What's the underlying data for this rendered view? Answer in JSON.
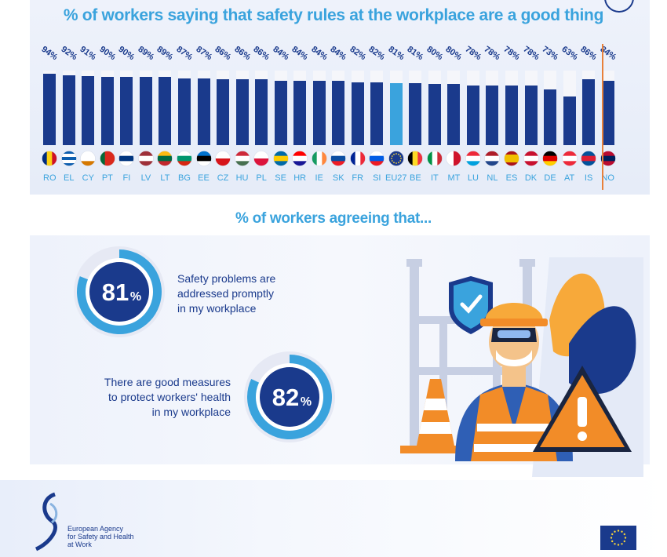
{
  "page": {
    "title": "% of workers saying that safety rules at the workplace are a good thing",
    "subtitle": "% of workers agreeing that..."
  },
  "chart_data": {
    "type": "bar",
    "title": "% of workers saying that safety rules at the workplace are a good thing",
    "categories": [
      "RO",
      "EL",
      "CY",
      "PT",
      "FI",
      "LV",
      "LT",
      "BG",
      "EE",
      "CZ",
      "HU",
      "PL",
      "SE",
      "HR",
      "IE",
      "SK",
      "FR",
      "SI",
      "EU27",
      "BE",
      "IT",
      "MT",
      "LU",
      "NL",
      "ES",
      "DK",
      "DE",
      "AT",
      "IS",
      "NO"
    ],
    "labels": [
      "94%",
      "92%",
      "91%",
      "90%",
      "90%",
      "89%",
      "89%",
      "87%",
      "87%",
      "86%",
      "86%",
      "86%",
      "84%",
      "84%",
      "84%",
      "84%",
      "82%",
      "82%",
      "81%",
      "81%",
      "80%",
      "80%",
      "78%",
      "78%",
      "78%",
      "78%",
      "73%",
      "63%",
      "86%",
      "84%"
    ],
    "values": [
      94,
      92,
      91,
      90,
      90,
      89,
      89,
      87,
      87,
      86,
      86,
      86,
      84,
      84,
      84,
      84,
      82,
      82,
      81,
      81,
      80,
      80,
      78,
      78,
      78,
      78,
      73,
      63,
      86,
      84
    ],
    "ylim": [
      0,
      100
    ],
    "highlight_category": "EU27",
    "colors": {
      "bar": "#1a3a8c",
      "highlight": "#3aa3dd",
      "track": "#f5f6fa",
      "separator": "#e8803a"
    }
  },
  "stats": [
    {
      "value": "81",
      "unit": "%",
      "text_lines": [
        "Safety problems are",
        "addressed promptly",
        "in my workplace"
      ],
      "fraction": 0.81
    },
    {
      "value": "82",
      "unit": "%",
      "text_lines": [
        "There are good measures",
        "to protect workers' health",
        "in my workplace"
      ],
      "fraction": 0.82
    }
  ],
  "footer": {
    "logo_lines": [
      "European Agency",
      "for Safety and Health",
      "at Work"
    ]
  }
}
